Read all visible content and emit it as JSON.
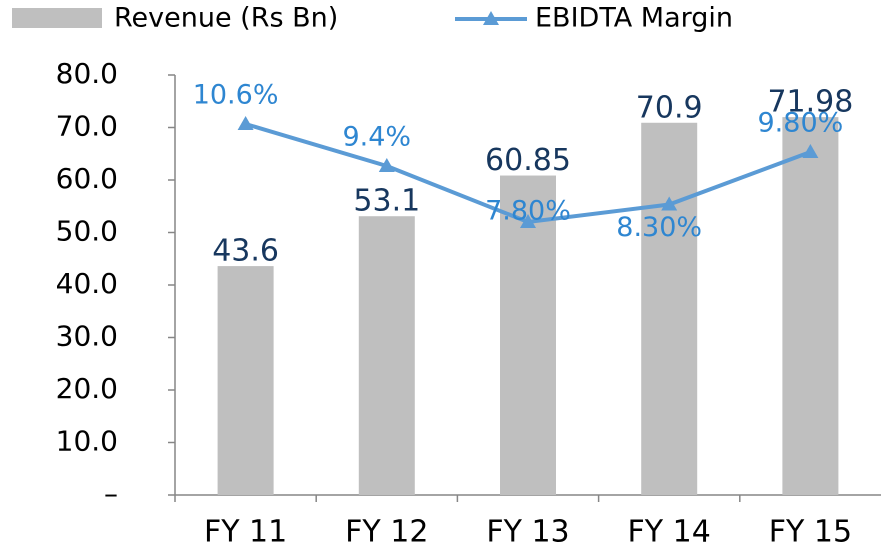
{
  "chart_data": {
    "type": "bar-line",
    "categories": [
      "FY 11",
      "FY 12",
      "FY 13",
      "FY 14",
      "FY 15"
    ],
    "series": [
      {
        "name": "Revenue (Rs Bn)",
        "type": "bar",
        "color": "#bfbfbf",
        "values": [
          43.6,
          53.1,
          60.85,
          70.9,
          71.98
        ]
      },
      {
        "name": "EBIDTA Margin",
        "type": "line",
        "axis": "y2",
        "color": "#5b9bd5",
        "values": [
          10.6,
          9.4,
          7.8,
          8.3,
          9.8
        ],
        "value_labels": [
          "10.6%",
          "9.4%",
          "7.80%",
          "8.30%",
          "9.80%"
        ]
      }
    ],
    "ylim": [
      0,
      80
    ],
    "yticks": [
      {
        "value": 0,
        "label": "–"
      },
      {
        "value": 10,
        "label": "10.0"
      },
      {
        "value": 20,
        "label": "20.0"
      },
      {
        "value": 30,
        "label": "30.0"
      },
      {
        "value": 40,
        "label": "40.0"
      },
      {
        "value": 50,
        "label": "50.0"
      },
      {
        "value": 60,
        "label": "60.0"
      },
      {
        "value": 70,
        "label": "70.0"
      },
      {
        "value": 80,
        "label": "80.0"
      }
    ],
    "y2lim": [
      0,
      12
    ],
    "legend": "top"
  }
}
